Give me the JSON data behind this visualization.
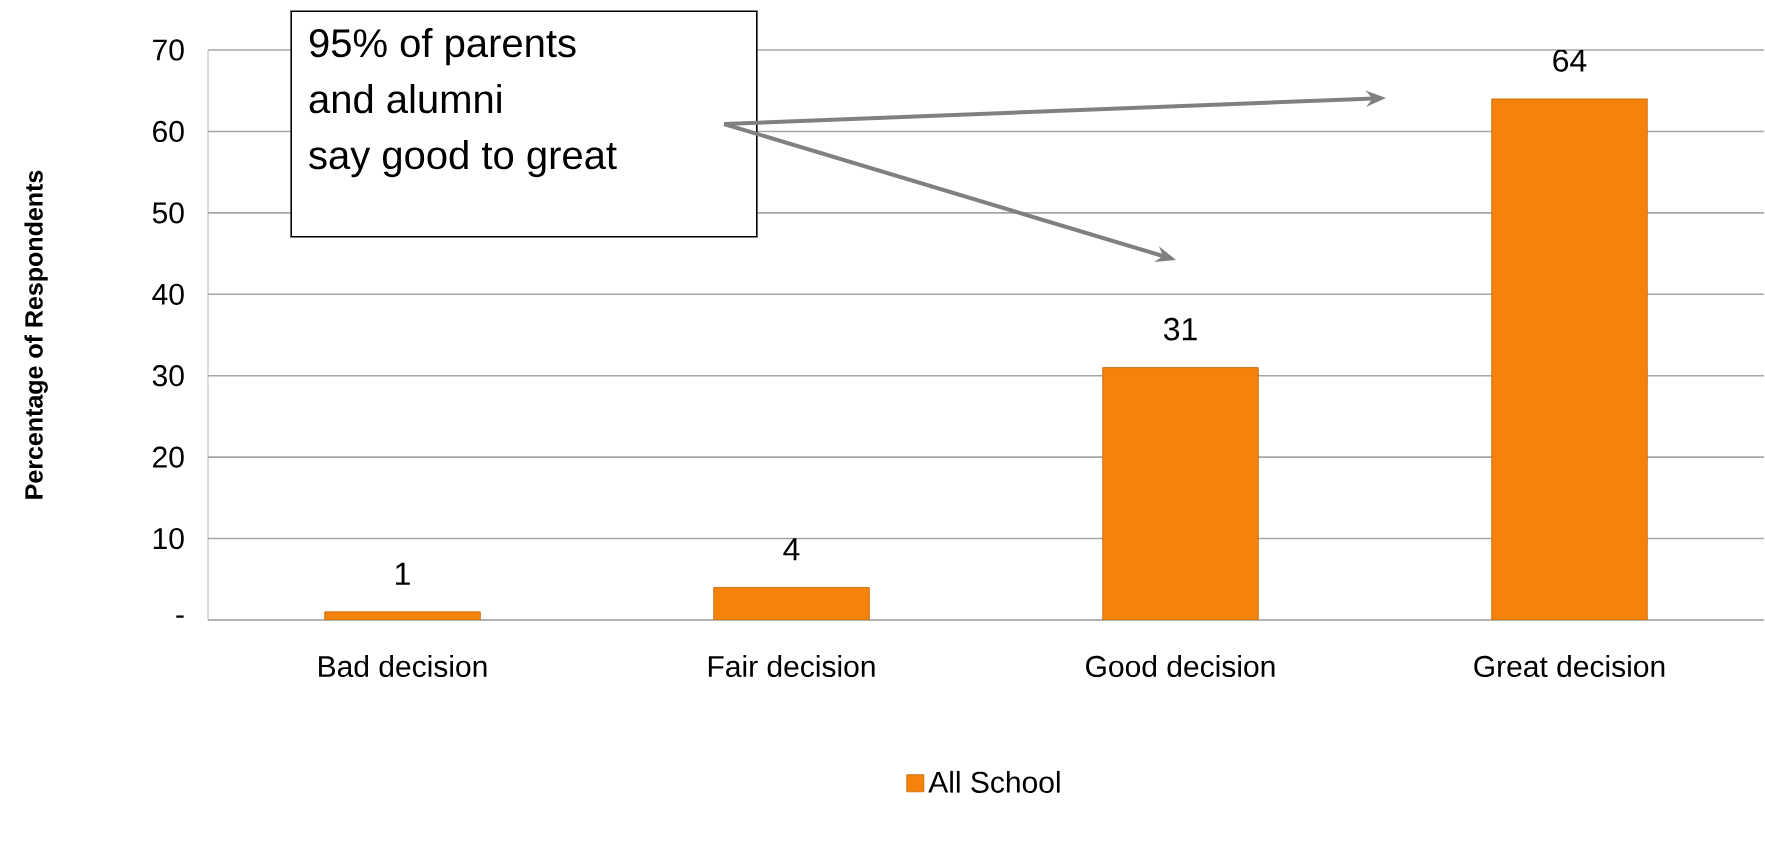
{
  "chart_data": {
    "type": "bar",
    "categories": [
      "Bad decision",
      "Fair decision",
      "Good decision",
      "Great decision"
    ],
    "series": [
      {
        "name": "All School",
        "color": "#f5820a",
        "values": [
          1,
          4,
          31,
          64
        ]
      }
    ],
    "ylabel": "Percentage of Respondents",
    "ylim": [
      0,
      70
    ],
    "yticks": [
      {
        "value": 0,
        "label": "-"
      },
      10,
      20,
      30,
      40,
      50,
      60,
      70
    ],
    "grid": "y",
    "legend": "bottom",
    "data_labels": true,
    "annotations": [
      "95% of parents",
      "and alumni",
      "say good to great"
    ]
  }
}
